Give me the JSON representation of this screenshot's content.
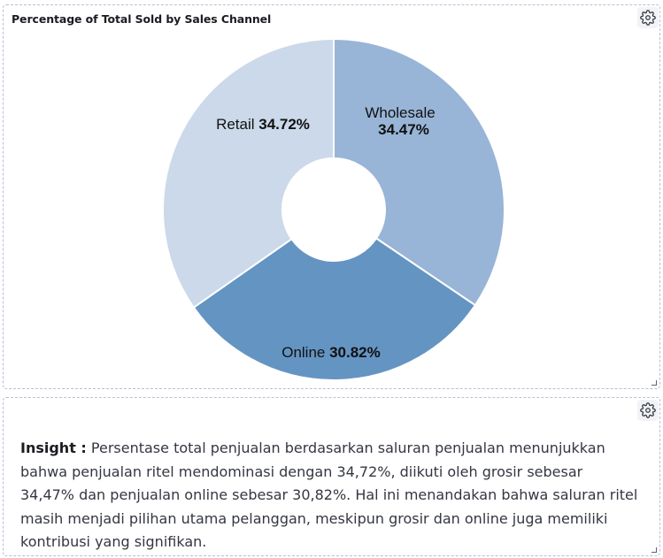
{
  "chart_panel": {
    "title": "Percentage of Total Sold by Sales Channel"
  },
  "chart_data": {
    "type": "pie",
    "title": "Percentage of Total Sold by Sales Channel",
    "donut": true,
    "slices": [
      {
        "name": "Wholesale",
        "value": 34.47,
        "label": "34.47%",
        "color": "#98b5d7"
      },
      {
        "name": "Online",
        "value": 30.82,
        "label": "30.82%",
        "color": "#6494c2"
      },
      {
        "name": "Retail",
        "value": 34.72,
        "label": "34.72%",
        "color": "#cbd9ea"
      }
    ]
  },
  "insight_panel": {
    "lead": "Insight :",
    "text": "Persentase total penjualan berdasarkan saluran penjualan menunjukkan bahwa penjualan ritel mendominasi dengan 34,72%, diikuti oleh grosir sebesar 34,47% dan penjualan online sebesar 30,82%. Hal ini menandakan bahwa saluran ritel masih menjadi pilihan utama pelanggan, meskipun grosir dan online juga memiliki kontribusi yang signifikan."
  },
  "icons": {
    "panel_options": "gear-icon",
    "resize": "resize-handle-icon"
  }
}
